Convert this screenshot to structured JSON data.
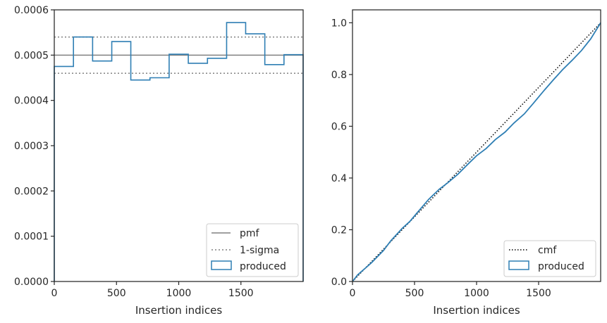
{
  "colors": {
    "produced": "#2f7fb4",
    "pmf": "#808080",
    "sigma": "#808080",
    "cmf": "#000000",
    "axes": "#262626"
  },
  "chart_data": [
    {
      "type": "step",
      "xlabel": "Insertion indices",
      "xlim": [
        0,
        2000
      ],
      "ylim": [
        0,
        0.0006
      ],
      "x_ticks": [
        0,
        500,
        1000,
        1500
      ],
      "x_tick_labels": [
        "0",
        "500",
        "1000",
        "1500"
      ],
      "y_ticks": [
        0,
        0.0001,
        0.0002,
        0.0003,
        0.0004,
        0.0005,
        0.0006
      ],
      "y_tick_labels": [
        "0.0000",
        "0.0001",
        "0.0002",
        "0.0003",
        "0.0004",
        "0.0005",
        "0.0006"
      ],
      "pmf": 0.0005,
      "sigma": [
        0.00046,
        0.00054
      ],
      "histogram": {
        "bin_edges": [
          0,
          154,
          308,
          462,
          615,
          769,
          923,
          1077,
          1231,
          1385,
          1538,
          1692,
          1846,
          2000
        ],
        "values": [
          0.000475,
          0.00054,
          0.000487,
          0.00053,
          0.000445,
          0.00045,
          0.000502,
          0.000482,
          0.000493,
          0.000572,
          0.000547,
          0.000479,
          0.000501
        ]
      },
      "legend": {
        "position": "lower right",
        "entries": [
          "pmf",
          "1-sigma",
          "produced"
        ]
      }
    },
    {
      "type": "line",
      "xlabel": "Insertion indices",
      "xlim": [
        0,
        2000
      ],
      "ylim": [
        0,
        1.05
      ],
      "x_ticks": [
        0,
        500,
        1000,
        1500
      ],
      "x_tick_labels": [
        "0",
        "500",
        "1000",
        "1500"
      ],
      "y_ticks": [
        0,
        0.2,
        0.4,
        0.6,
        0.8,
        1.0
      ],
      "y_tick_labels": [
        "0.0",
        "0.2",
        "0.4",
        "0.6",
        "0.8",
        "1.0"
      ],
      "cmf": {
        "x": [
          0,
          2000
        ],
        "y": [
          0,
          1.0
        ]
      },
      "produced": {
        "x": [
          0,
          40,
          100,
          154,
          250,
          308,
          400,
          462,
          520,
          615,
          700,
          769,
          850,
          923,
          1000,
          1077,
          1150,
          1231,
          1300,
          1385,
          1460,
          1538,
          1620,
          1692,
          1770,
          1846,
          1920,
          2000
        ],
        "y": [
          0,
          0.025,
          0.05,
          0.073,
          0.12,
          0.157,
          0.205,
          0.232,
          0.265,
          0.318,
          0.357,
          0.382,
          0.415,
          0.45,
          0.486,
          0.514,
          0.548,
          0.578,
          0.612,
          0.648,
          0.69,
          0.735,
          0.78,
          0.818,
          0.855,
          0.893,
          0.938,
          1.0
        ]
      },
      "legend": {
        "position": "lower right",
        "entries": [
          "cmf",
          "produced"
        ]
      }
    }
  ]
}
